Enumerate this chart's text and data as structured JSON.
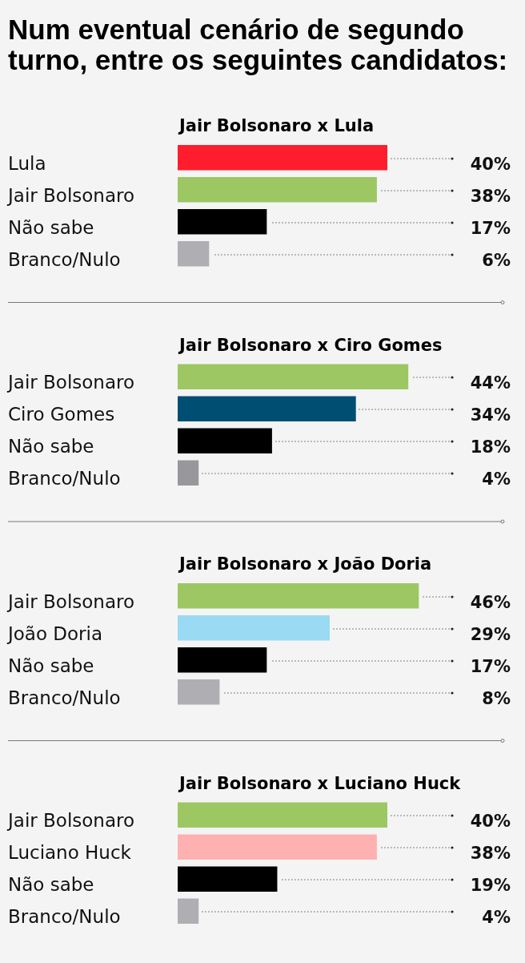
{
  "chart_data": [
    {
      "type": "bar",
      "orientation": "horizontal",
      "title": "Num eventual cenário de segundo turno, entre os seguintes candidatos:",
      "subtitle": "Jair Bolsonaro x Lula",
      "categories": [
        "Lula",
        "Jair Bolsonaro",
        "Não sabe",
        "Branco/Nulo"
      ],
      "values": [
        40,
        38,
        17,
        6
      ],
      "colors": [
        "#fe1d2c",
        "#9cc763",
        "#000000",
        "#afaeb3"
      ],
      "value_labels": [
        "40%",
        "38%",
        "17%",
        "6%"
      ]
    },
    {
      "type": "bar",
      "orientation": "horizontal",
      "title": "Jair Bolsonaro x Ciro Gomes",
      "categories": [
        "Jair Bolsonaro",
        "Ciro Gomes",
        "Não sabe",
        "Branco/Nulo"
      ],
      "values": [
        44,
        34,
        18,
        4
      ],
      "colors": [
        "#9cc763",
        "#004f73",
        "#000000",
        "#98979b"
      ],
      "value_labels": [
        "44%",
        "34%",
        "18%",
        "4%"
      ]
    },
    {
      "type": "bar",
      "orientation": "horizontal",
      "title": "Jair Bolsonaro x João Doria",
      "categories": [
        "Jair Bolsonaro",
        "João Doria",
        "Não sabe",
        "Branco/Nulo"
      ],
      "values": [
        46,
        29,
        17,
        8
      ],
      "colors": [
        "#9cc763",
        "#9adaf2",
        "#000000",
        "#afaeb3"
      ],
      "value_labels": [
        "46%",
        "29%",
        "17%",
        "8%"
      ]
    },
    {
      "type": "bar",
      "orientation": "horizontal",
      "title": "Jair Bolsonaro x Luciano Huck",
      "categories": [
        "Jair Bolsonaro",
        "Luciano Huck",
        "Não sabe",
        "Branco/Nulo"
      ],
      "values": [
        40,
        38,
        19,
        4
      ],
      "colors": [
        "#9cc763",
        "#feb1b1",
        "#000000",
        "#afaeb3"
      ],
      "value_labels": [
        "40%",
        "38%",
        "19%",
        "4%"
      ]
    }
  ]
}
